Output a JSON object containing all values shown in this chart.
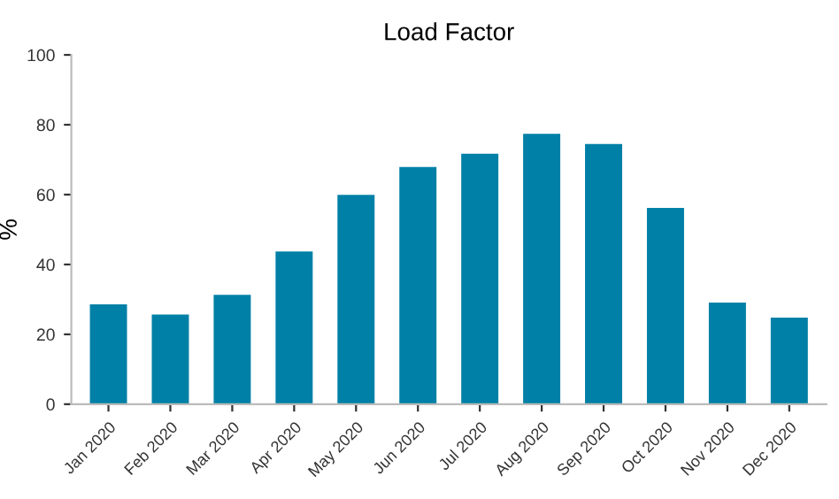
{
  "chart_data": {
    "type": "bar",
    "title": "Load Factor",
    "ylabel": "%",
    "categories": [
      "Jan 2020",
      "Feb 2020",
      "Mar 2020",
      "Apr 2020",
      "May 2020",
      "Jun 2020",
      "Jul 2020",
      "Aug 2020",
      "Sep 2020",
      "Oct 2020",
      "Nov 2020",
      "Dec 2020"
    ],
    "values": [
      28.6,
      25.7,
      31.3,
      43.7,
      59.9,
      67.9,
      71.7,
      77.4,
      74.5,
      56.2,
      29.1,
      24.8
    ],
    "color": "#0080a6",
    "ylim": [
      0,
      100
    ],
    "yticks": [
      0,
      20,
      40,
      60,
      80,
      100
    ],
    "grid": false
  }
}
